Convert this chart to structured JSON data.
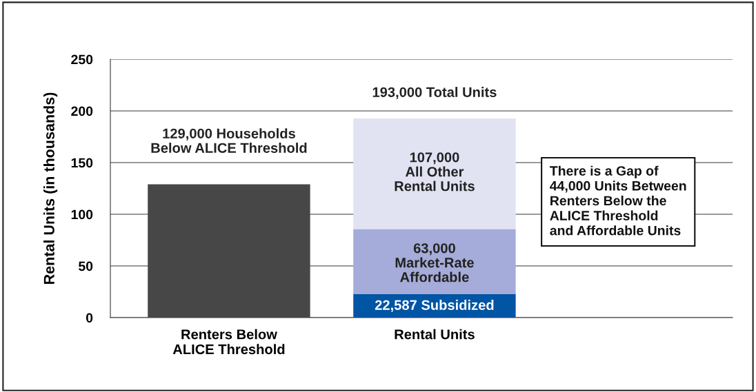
{
  "chart_data": {
    "type": "bar",
    "stacked": true,
    "ylabel": "Rental Units (in thousands)",
    "categories": [
      "Renters Below\nALICE Threshold",
      "Rental Units"
    ],
    "series": [
      {
        "values": [
          129,
          22.587
        ],
        "colors": [
          "#474747",
          "#0055a5"
        ]
      },
      {
        "values": [
          null,
          63
        ],
        "color": "#a5acd9"
      },
      {
        "values": [
          null,
          107
        ],
        "color": "#e1e3f2"
      }
    ],
    "ylim": [
      0,
      250
    ],
    "yticks": [
      0,
      50,
      100,
      150,
      200,
      250
    ],
    "grid": "y",
    "legend": false,
    "annotations": [
      "129,000 Households\nBelow ALICE Threshold",
      "193,000 Total Units",
      "107,000\nAll Other\nRental Units",
      "63,000\nMarket-Rate\nAffordable",
      "22,587 Subsidized",
      "There is a Gap of\n44,000 Units Between\nRenters Below the\nALICE Threshold\nand Affordable Units"
    ]
  }
}
